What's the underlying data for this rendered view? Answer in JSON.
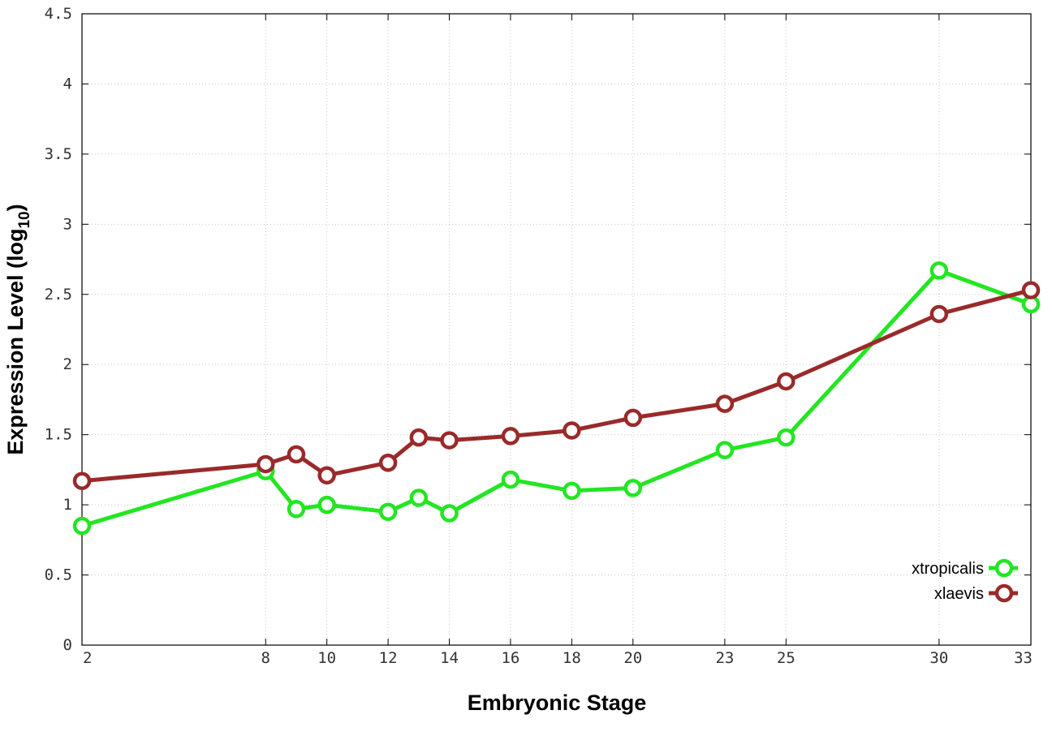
{
  "chart_data": {
    "type": "line",
    "title": "",
    "xlabel": "Embryonic Stage",
    "ylabel_main": "Expression Level (log",
    "ylabel_sub": "10",
    "ylabel_close": ")",
    "xlim": [
      2,
      33
    ],
    "ylim": [
      0,
      4.5
    ],
    "grid": true,
    "legend_position": "bottom-right",
    "x_ticks": [
      2,
      8,
      10,
      12,
      14,
      16,
      18,
      20,
      23,
      25,
      30,
      33
    ],
    "y_ticks": [
      0,
      0.5,
      1,
      1.5,
      2,
      2.5,
      3,
      3.5,
      4,
      4.5
    ],
    "y_tick_labels": [
      "0",
      "0.5",
      "1",
      "1.5",
      "2",
      "2.5",
      "3",
      "3.5",
      "4",
      "4.5"
    ],
    "x": [
      2,
      8,
      9,
      10,
      12,
      13,
      14,
      16,
      18,
      20,
      23,
      25,
      30,
      33
    ],
    "series": [
      {
        "name": "xtropicalis",
        "color": "#22e622",
        "values": [
          0.85,
          1.24,
          0.97,
          1.0,
          0.95,
          1.05,
          0.94,
          1.18,
          1.1,
          1.12,
          1.39,
          1.48,
          2.67,
          2.43
        ]
      },
      {
        "name": "xlaevis",
        "color": "#9a2a2a",
        "values": [
          1.17,
          1.29,
          1.36,
          1.21,
          1.3,
          1.48,
          1.46,
          1.49,
          1.53,
          1.62,
          1.72,
          1.88,
          2.36,
          2.53
        ]
      }
    ]
  }
}
